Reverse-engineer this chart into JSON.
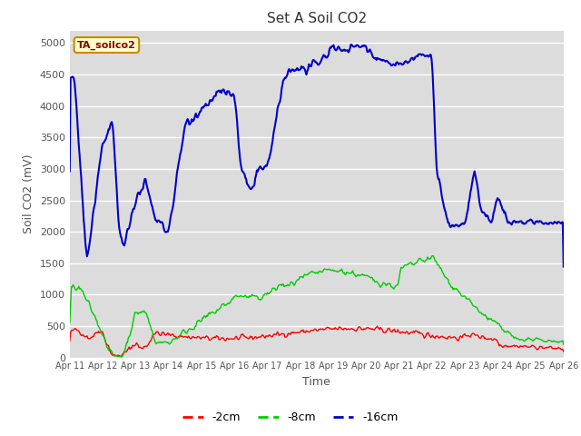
{
  "title": "Set A Soil CO2",
  "ylabel": "Soil CO2 (mV)",
  "xlabel": "Time",
  "tag_label": "TA_soilco2",
  "tag_bg": "#ffffcc",
  "tag_fg": "#8b0000",
  "tag_edge": "#cc8800",
  "legend_labels": [
    "-2cm",
    "-8cm",
    "-16cm"
  ],
  "legend_colors": [
    "#ff0000",
    "#00cc00",
    "#0000cc"
  ],
  "line_colors": [
    "#ff0000",
    "#00cc00",
    "#0000cc"
  ],
  "ylim": [
    0,
    5200
  ],
  "yticks": [
    0,
    500,
    1000,
    1500,
    2000,
    2500,
    3000,
    3500,
    4000,
    4500,
    5000
  ],
  "xtick_labels": [
    "Apr 11",
    "Apr 12",
    "Apr 13",
    "Apr 14",
    "Apr 15",
    "Apr 16",
    "Apr 17",
    "Apr 18",
    "Apr 19",
    "Apr 20",
    "Apr 21",
    "Apr 22",
    "Apr 23",
    "Apr 24",
    "Apr 25",
    "Apr 26"
  ],
  "plot_bg": "#dcdcdc",
  "fig_bg": "#ffffff",
  "grid_color": "#ffffff",
  "n_points": 600
}
